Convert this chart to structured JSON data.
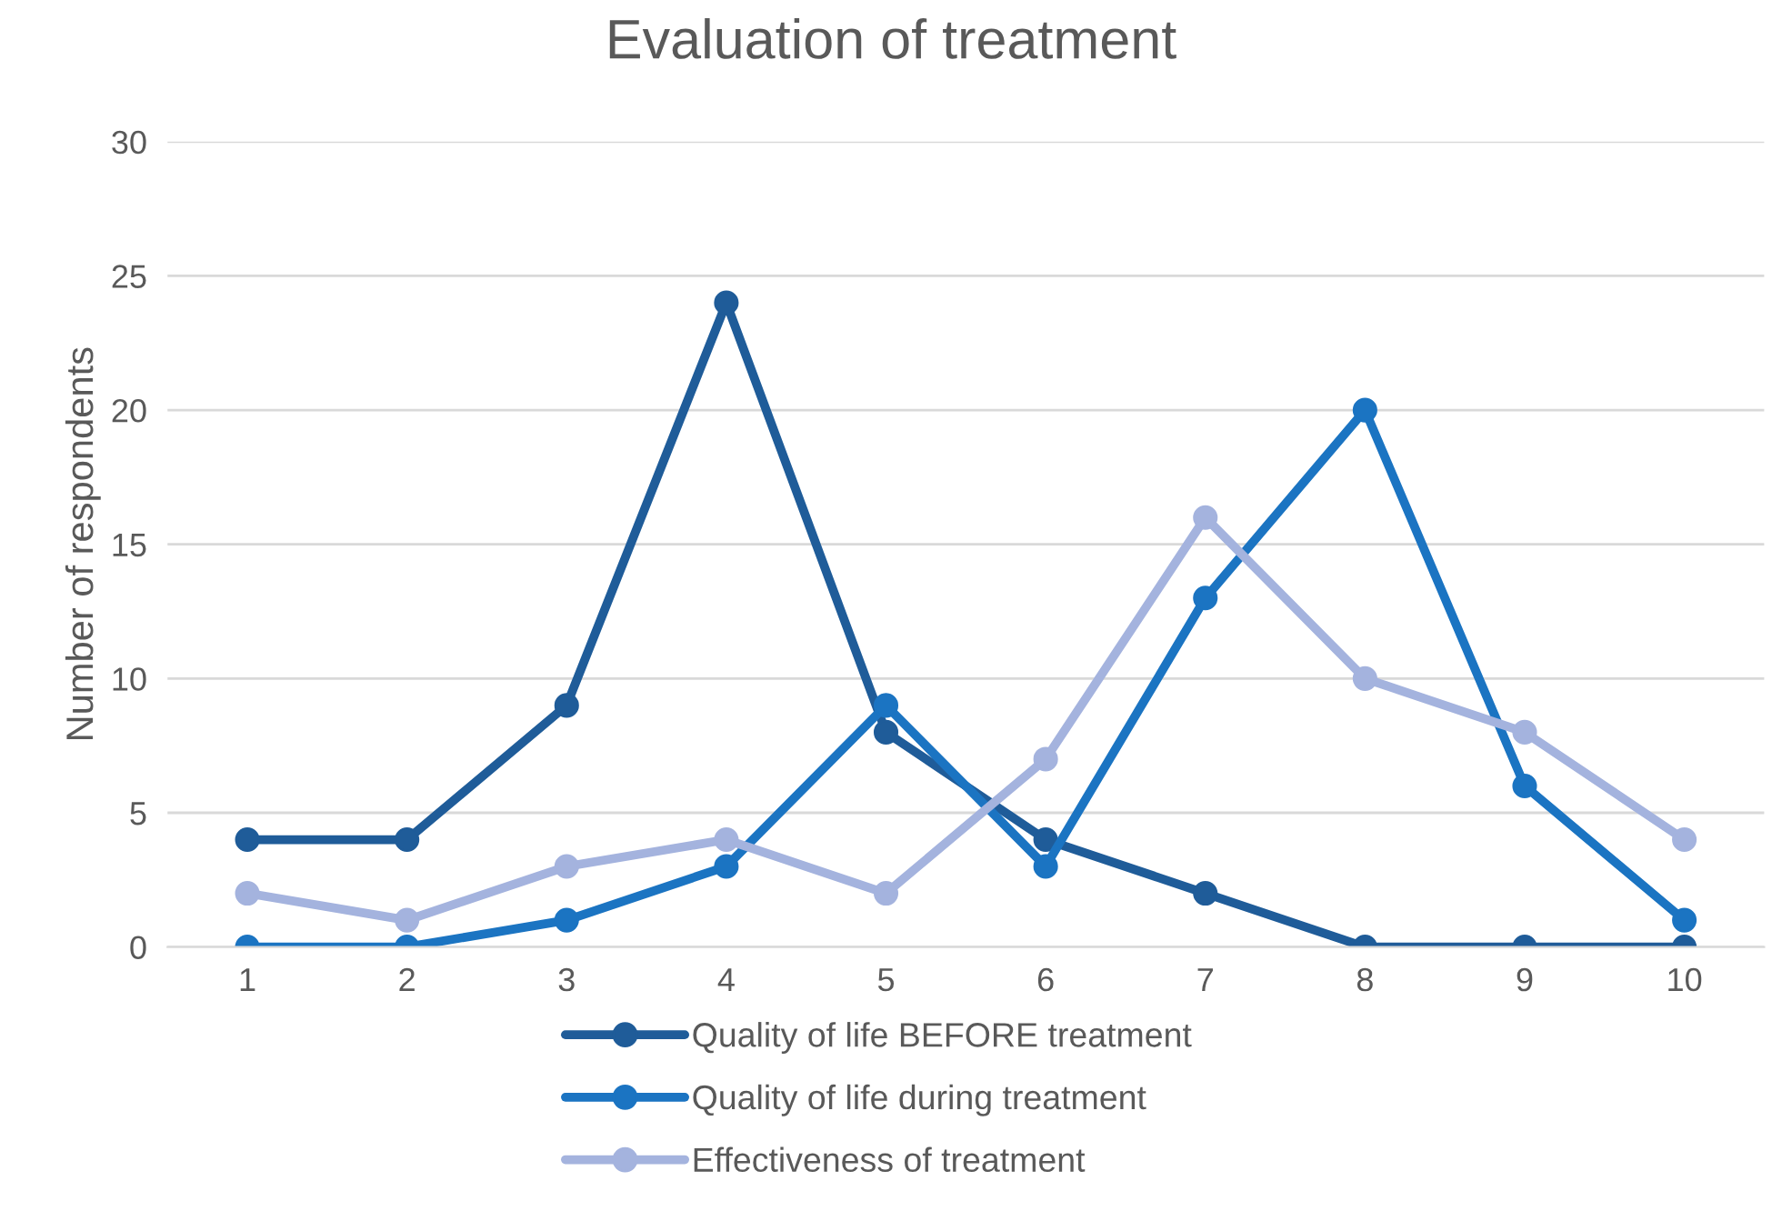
{
  "chart_data": {
    "type": "line",
    "title": "Evaluation of treatment",
    "ylabel": "Number of respondents",
    "categories": [
      "1",
      "2",
      "3",
      "4",
      "5",
      "6",
      "7",
      "8",
      "9",
      "10"
    ],
    "series": [
      {
        "name": "Quality of life BEFORE treatment",
        "color": "#1f5c99",
        "values": [
          4,
          4,
          9,
          24,
          8,
          4,
          2,
          0,
          0,
          0
        ]
      },
      {
        "name": "Quality of life during treatment",
        "color": "#1b74c2",
        "values": [
          0,
          0,
          1,
          3,
          9,
          3,
          13,
          20,
          6,
          1
        ]
      },
      {
        "name": "Effectiveness of treatment",
        "color": "#a4b3de",
        "values": [
          2,
          1,
          3,
          4,
          2,
          7,
          16,
          10,
          8,
          4
        ]
      }
    ],
    "ylim": [
      0,
      30
    ],
    "yticks": [
      0,
      5,
      10,
      15,
      20,
      25,
      30
    ],
    "grid": "y",
    "legend": "bottom",
    "marker": "circle",
    "line_style": "solid"
  }
}
